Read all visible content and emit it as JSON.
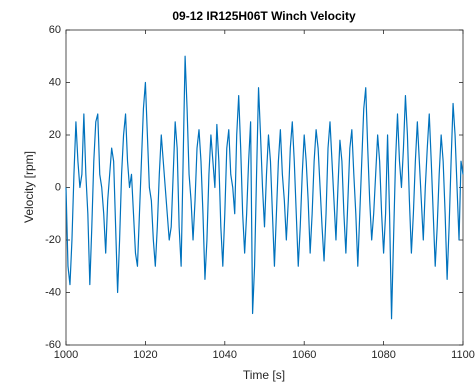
{
  "chart_data": {
    "type": "line",
    "title": "09-12 IR125H06T Winch Velocity",
    "xlabel": "Time [s]",
    "ylabel": "Velocity [rpm]",
    "xlim": [
      1000,
      1100
    ],
    "xticks": [
      1000,
      1020,
      1040,
      1060,
      1080,
      1100
    ],
    "ylim": [
      -60,
      60
    ],
    "yticks": [
      -60,
      -40,
      -20,
      0,
      20,
      40,
      60
    ],
    "x": [
      1000,
      1000.5,
      1001,
      1001.5,
      1002,
      1002.5,
      1003,
      1003.5,
      1004,
      1004.5,
      1005,
      1005.5,
      1006,
      1006.5,
      1007,
      1007.5,
      1008,
      1008.5,
      1009,
      1009.5,
      1010,
      1010.5,
      1011,
      1011.5,
      1012,
      1012.5,
      1013,
      1013.5,
      1014,
      1014.5,
      1015,
      1015.5,
      1016,
      1016.5,
      1017,
      1017.5,
      1018,
      1018.5,
      1019,
      1019.5,
      1020,
      1020.5,
      1021,
      1021.5,
      1022,
      1022.5,
      1023,
      1023.5,
      1024,
      1024.5,
      1025,
      1025.5,
      1026,
      1026.5,
      1027,
      1027.5,
      1028,
      1028.5,
      1029,
      1029.5,
      1030,
      1030.5,
      1031,
      1031.5,
      1032,
      1032.5,
      1033,
      1033.5,
      1034,
      1034.5,
      1035,
      1035.5,
      1036,
      1036.5,
      1037,
      1037.5,
      1038,
      1038.5,
      1039,
      1039.5,
      1040,
      1040.5,
      1041,
      1041.5,
      1042,
      1042.5,
      1043,
      1043.5,
      1044,
      1044.5,
      1045,
      1045.5,
      1046,
      1046.5,
      1047,
      1047.5,
      1048,
      1048.5,
      1049,
      1049.5,
      1050,
      1050.5,
      1051,
      1051.5,
      1052,
      1052.5,
      1053,
      1053.5,
      1054,
      1054.5,
      1055,
      1055.5,
      1056,
      1056.5,
      1057,
      1057.5,
      1058,
      1058.5,
      1059,
      1059.5,
      1060,
      1060.5,
      1061,
      1061.5,
      1062,
      1062.5,
      1063,
      1063.5,
      1064,
      1064.5,
      1065,
      1065.5,
      1066,
      1066.5,
      1067,
      1067.5,
      1068,
      1068.5,
      1069,
      1069.5,
      1070,
      1070.5,
      1071,
      1071.5,
      1072,
      1072.5,
      1073,
      1073.5,
      1074,
      1074.5,
      1075,
      1075.5,
      1076,
      1076.5,
      1077,
      1077.5,
      1078,
      1078.5,
      1079,
      1079.5,
      1080,
      1080.5,
      1081,
      1081.5,
      1082,
      1082.5,
      1083,
      1083.5,
      1084,
      1084.5,
      1085,
      1085.5,
      1086,
      1086.5,
      1087,
      1087.5,
      1088,
      1088.5,
      1089,
      1089.5,
      1090,
      1090.5,
      1091,
      1091.5,
      1092,
      1092.5,
      1093,
      1093.5,
      1094,
      1094.5,
      1095,
      1095.5,
      1096,
      1096.5,
      1097,
      1097.5,
      1098,
      1098.5,
      1099,
      1099.5,
      1100
    ],
    "series": [
      {
        "color": "#0072bd",
        "values": [
          0,
          -30,
          -37,
          -20,
          5,
          25,
          10,
          0,
          5,
          28,
          5,
          -10,
          -37,
          -15,
          10,
          25,
          28,
          5,
          0,
          -10,
          -25,
          -5,
          5,
          15,
          10,
          -15,
          -40,
          -20,
          5,
          20,
          28,
          10,
          0,
          5,
          -10,
          -25,
          -30,
          -10,
          10,
          30,
          40,
          20,
          0,
          -5,
          -20,
          -30,
          -15,
          5,
          20,
          10,
          0,
          -10,
          -20,
          -15,
          5,
          25,
          15,
          -15,
          -30,
          10,
          50,
          30,
          5,
          -5,
          -20,
          -5,
          15,
          22,
          10,
          -10,
          -35,
          -20,
          5,
          20,
          10,
          0,
          24,
          10,
          -15,
          -30,
          -10,
          15,
          22,
          5,
          0,
          -10,
          20,
          35,
          15,
          -10,
          -25,
          -10,
          10,
          25,
          -48,
          -30,
          5,
          38,
          20,
          0,
          -15,
          5,
          20,
          10,
          -10,
          -30,
          -10,
          10,
          22,
          5,
          -5,
          -20,
          -5,
          15,
          25,
          10,
          -10,
          -30,
          -15,
          5,
          20,
          10,
          -5,
          -25,
          -10,
          10,
          22,
          15,
          0,
          -15,
          -28,
          -10,
          15,
          25,
          10,
          -5,
          -20,
          0,
          18,
          10,
          -10,
          -25,
          -5,
          15,
          22,
          5,
          -10,
          -30,
          -10,
          10,
          30,
          38,
          15,
          -5,
          -20,
          -10,
          5,
          20,
          10,
          -10,
          -25,
          -10,
          20,
          -10,
          -50,
          -20,
          10,
          28,
          10,
          0,
          15,
          35,
          20,
          -5,
          -25,
          -10,
          10,
          25,
          10,
          -5,
          -20,
          0,
          15,
          28,
          10,
          -10,
          -30,
          -15,
          5,
          20,
          10,
          -10,
          -35,
          -15,
          10,
          32,
          20,
          0,
          -20,
          10,
          5
        ]
      }
    ]
  }
}
